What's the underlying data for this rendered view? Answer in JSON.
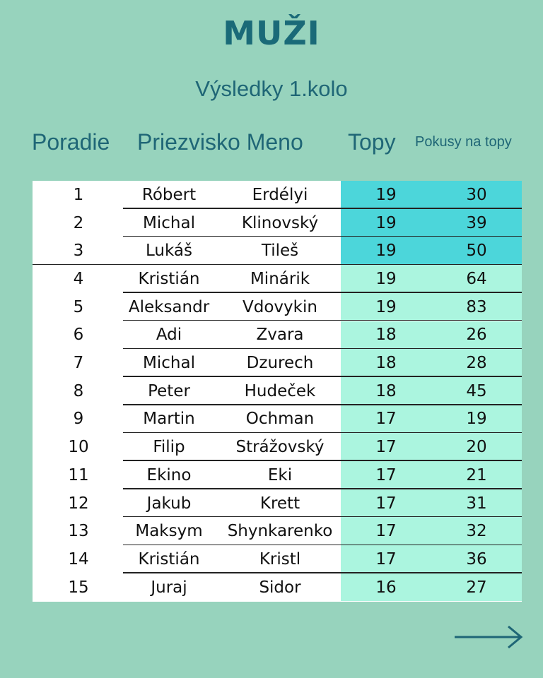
{
  "title": "MUŽI",
  "subtitle": "Výsledky 1.kolo",
  "headers": {
    "rank": "Poradie",
    "name": "Priezvisko Meno",
    "tops": "Topy",
    "attempts": "Pokusy na topy"
  },
  "rows": [
    {
      "rank": "1",
      "first": "Róbert",
      "last": "Erdélyi",
      "tops": "19",
      "attempts": "30"
    },
    {
      "rank": "2",
      "first": "Michal",
      "last": "Klinovský",
      "tops": "19",
      "attempts": "39"
    },
    {
      "rank": "3",
      "first": "Lukáš",
      "last": "Tileš",
      "tops": "19",
      "attempts": "50"
    },
    {
      "rank": "4",
      "first": "Kristián",
      "last": "Minárik",
      "tops": "19",
      "attempts": "64"
    },
    {
      "rank": "5",
      "first": "Aleksandr",
      "last": "Vdovykin",
      "tops": "19",
      "attempts": "83"
    },
    {
      "rank": "6",
      "first": "Adi",
      "last": "Zvara",
      "tops": "18",
      "attempts": "26"
    },
    {
      "rank": "7",
      "first": "Michal",
      "last": "Dzurech",
      "tops": "18",
      "attempts": "28"
    },
    {
      "rank": "8",
      "first": "Peter",
      "last": "Hudeček",
      "tops": "18",
      "attempts": "45"
    },
    {
      "rank": "9",
      "first": "Martin",
      "last": "Ochman",
      "tops": "17",
      "attempts": "19"
    },
    {
      "rank": "10",
      "first": "Filip",
      "last": "Strážovský",
      "tops": "17",
      "attempts": "20"
    },
    {
      "rank": "11",
      "first": "Ekino",
      "last": "Eki",
      "tops": "17",
      "attempts": "21"
    },
    {
      "rank": "12",
      "first": "Jakub",
      "last": "Krett",
      "tops": "17",
      "attempts": "31"
    },
    {
      "rank": "13",
      "first": "Maksym",
      "last": "Shynkarenko",
      "tops": "17",
      "attempts": "32"
    },
    {
      "rank": "14",
      "first": "Kristián",
      "last": "Kristl",
      "tops": "17",
      "attempts": "36"
    },
    {
      "rank": "15",
      "first": "Juraj",
      "last": "Sidor",
      "tops": "16",
      "attempts": "27"
    }
  ],
  "colors": {
    "background": "#97d3bd",
    "podium_highlight": "#4cd6da",
    "score_highlight": "#abf5df",
    "heading_text": "#1a6a78"
  },
  "icons": {
    "next": "arrow-right-icon"
  }
}
